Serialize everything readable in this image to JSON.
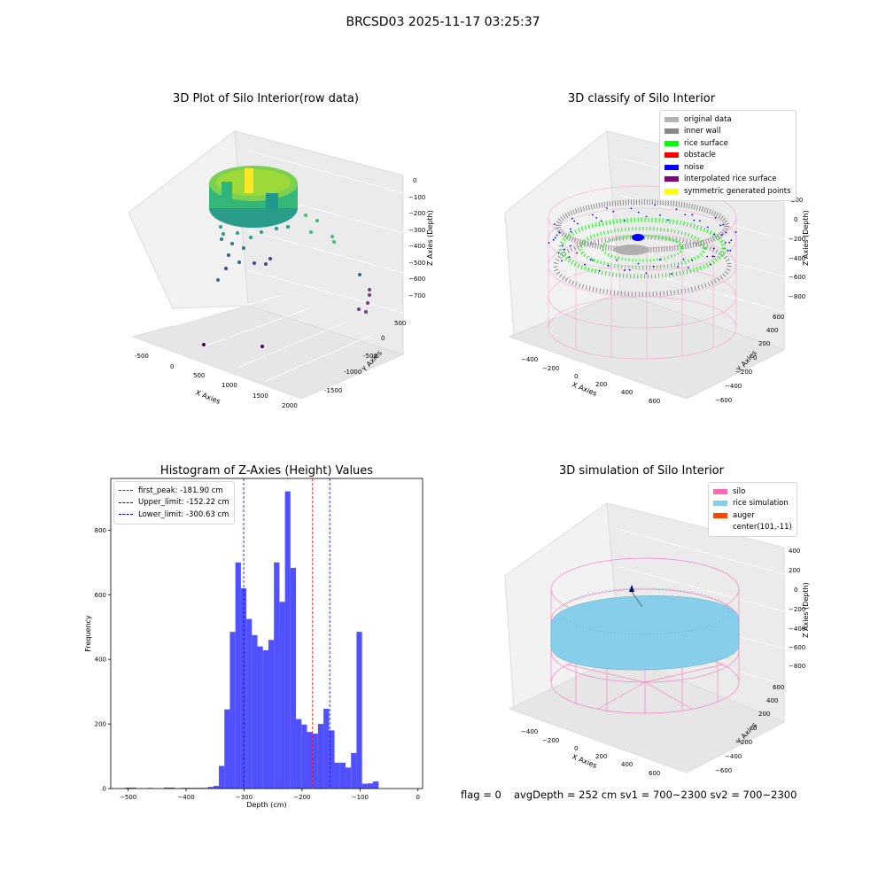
{
  "figure": {
    "suptitle": "BRCSD03 2025-11-17 03:25:37",
    "footer": {
      "flag": "flag = 0",
      "avg": "avgDepth = 252 cm  sv1 = 700~2300  sv2 = 700~2300"
    }
  },
  "chart_data": [
    {
      "type": "scatter",
      "title": "3D Plot of Silo Interior(row data)",
      "xlabel": "X Axies",
      "ylabel": "Y Axies",
      "zlabel": "Z Axies (Depth)",
      "x_ticks": [
        "-500",
        "0",
        "500",
        "1000",
        "1500",
        "2000"
      ],
      "y_ticks": [
        "-1500",
        "-1000",
        "-500",
        "0",
        "500"
      ],
      "z_ticks": [
        "0",
        "-100",
        "-200",
        "-300",
        "-400",
        "-500",
        "-600",
        "-700"
      ],
      "description": "colormap viridis by depth; dense ring of points near z -100 to -250 plus scattered outliers",
      "outlier_points": [
        {
          "x": 1000,
          "y": -1500,
          "z": -750
        },
        {
          "x": 1900,
          "y": -1000,
          "z": -750
        }
      ]
    },
    {
      "type": "scatter",
      "title": "3D classify of Silo Interior",
      "xlabel": "X Axies",
      "ylabel": "Y Axies",
      "zlabel": "Z Axies (Depth)",
      "x_ticks": [
        "-400",
        "-200",
        "0",
        "200",
        "400",
        "600"
      ],
      "y_ticks": [
        "-600",
        "-400",
        "-200",
        "0",
        "200",
        "400",
        "600"
      ],
      "z_ticks": [
        "200",
        "0",
        "-200",
        "-400",
        "-600",
        "-800"
      ],
      "legend": [
        {
          "label": "original data",
          "color": "#b4b4b4"
        },
        {
          "label": "inner wall",
          "color": "#888888"
        },
        {
          "label": "rice surface",
          "color": "#00ff00"
        },
        {
          "label": "obstacle",
          "color": "#ff0000"
        },
        {
          "label": "noise",
          "color": "#0000ff"
        },
        {
          "label": "interpolated rice surface",
          "color": "#800080"
        },
        {
          "label": "symmetric generated points",
          "color": "#ffff00"
        }
      ]
    },
    {
      "type": "bar",
      "title": "Histogram of Z-Axies (Height) Values",
      "xlabel": "Depth (cm)",
      "ylabel": "Frequency",
      "xlim": [
        -530,
        8
      ],
      "ylim": [
        0,
        960
      ],
      "x_ticks": [
        -500,
        -400,
        -300,
        -200,
        -100,
        0
      ],
      "y_ticks": [
        0,
        200,
        400,
        600,
        800
      ],
      "bar_color": "#5050ff",
      "bin_start": -505,
      "bin_width": 9.5,
      "values": [
        3,
        3,
        0,
        0,
        2,
        0,
        0,
        3,
        3,
        0,
        2,
        2,
        2,
        2,
        2,
        5,
        8,
        70,
        245,
        485,
        700,
        620,
        525,
        475,
        440,
        428,
        460,
        700,
        578,
        920,
        683,
        215,
        198,
        175,
        170,
        200,
        247,
        180,
        80,
        80,
        65,
        110,
        485,
        15,
        16,
        22
      ],
      "lines": [
        {
          "label": "first_peak: -181.90 cm",
          "x": -181.9,
          "color": "#ff0000"
        },
        {
          "label": "Upper_limit: -152.22 cm",
          "x": -152.22,
          "color": "#0000ff"
        },
        {
          "label": "Lower_limit: -300.63 cm",
          "x": -300.63,
          "color": "#0000ff"
        }
      ]
    },
    {
      "type": "scatter",
      "title": "3D simulation of Silo Interior",
      "xlabel": "X Axies",
      "ylabel": "Y Axies",
      "zlabel": "Z Axies (Depth)",
      "x_ticks": [
        "-400",
        "-200",
        "0",
        "200",
        "400",
        "600"
      ],
      "y_ticks": [
        "-600",
        "-400",
        "-200",
        "0",
        "200",
        "400",
        "600"
      ],
      "z_ticks": [
        "400",
        "200",
        "0",
        "-200",
        "-400",
        "-600",
        "-800"
      ],
      "legend": [
        {
          "label": "silo",
          "color": "#ff69b4"
        },
        {
          "label": "rice simulation",
          "color": "#87ceeb"
        },
        {
          "label": "auger",
          "color": "#ff4500"
        },
        {
          "label": "center(101,-11)",
          "color": ""
        }
      ]
    }
  ]
}
